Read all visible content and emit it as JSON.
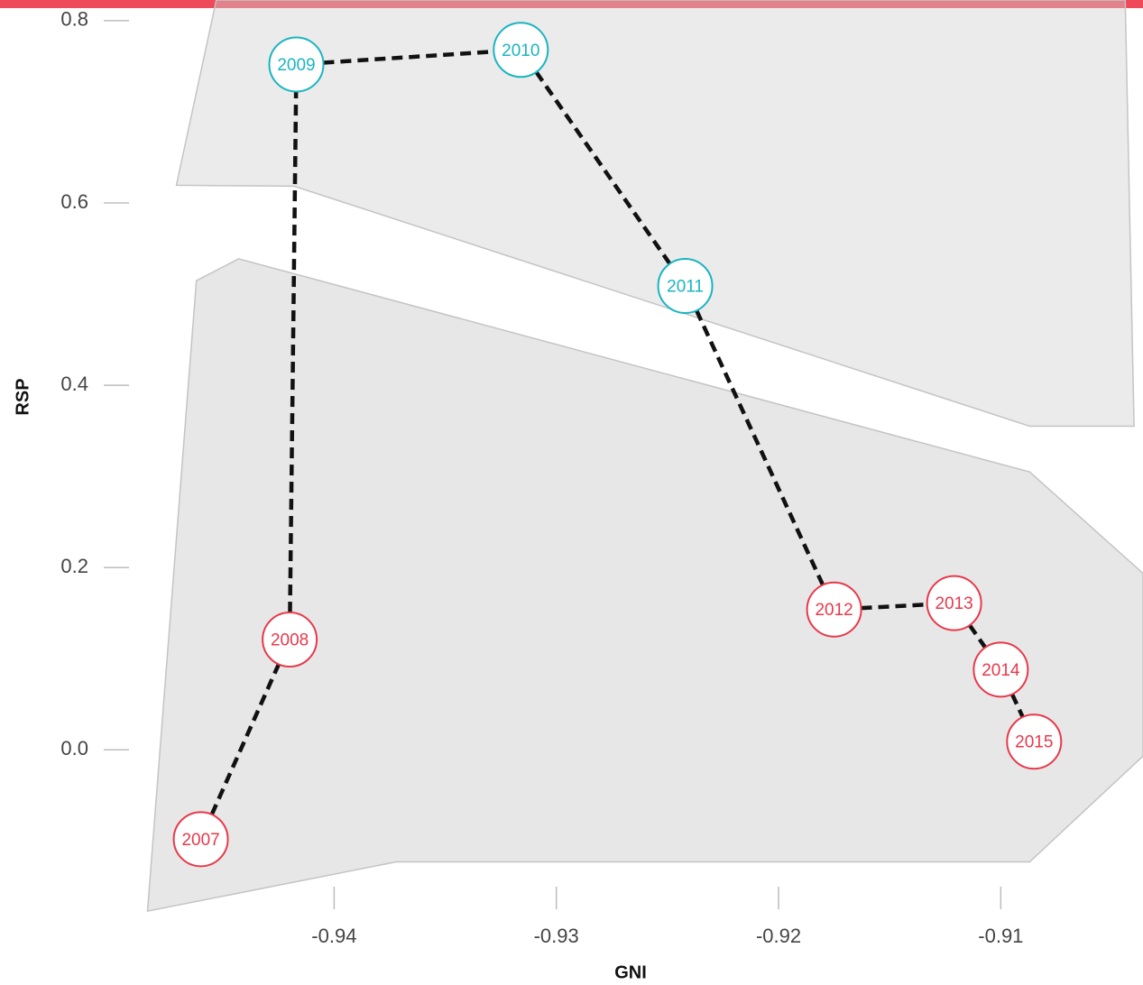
{
  "colors": {
    "top_bar": "#ef4a5a",
    "group_a": "#19b5c0",
    "group_b": "#e8394b",
    "region_fill": "#cfcfcf",
    "region_stroke": "#c4c4c4",
    "line": "#111111"
  },
  "chart_data": {
    "type": "scatter",
    "title": "",
    "xlabel": "GNI",
    "ylabel": "RSP",
    "xlim": [
      -0.9485,
      -0.9036
    ],
    "ylim": [
      -0.1818,
      0.8227
    ],
    "x_ticks": [
      -0.94,
      -0.93,
      -0.92,
      -0.91
    ],
    "x_tick_labels": [
      "-0.94",
      "-0.93",
      "-0.92",
      "-0.91"
    ],
    "y_ticks": [
      0.0,
      0.2,
      0.4,
      0.6,
      0.8
    ],
    "y_tick_labels": [
      "0.0",
      "0.2",
      "0.4",
      "0.6",
      "0.8"
    ],
    "grid": false,
    "connected": true,
    "line_style": "dashed",
    "points": [
      {
        "label": "2007",
        "x": -0.946,
        "y": -0.098,
        "group": "b"
      },
      {
        "label": "2008",
        "x": -0.942,
        "y": 0.121,
        "group": "b"
      },
      {
        "label": "2009",
        "x": -0.9417,
        "y": 0.752,
        "group": "a"
      },
      {
        "label": "2010",
        "x": -0.9316,
        "y": 0.768,
        "group": "a"
      },
      {
        "label": "2011",
        "x": -0.9242,
        "y": 0.509,
        "group": "a"
      },
      {
        "label": "2012",
        "x": -0.9175,
        "y": 0.154,
        "group": "b"
      },
      {
        "label": "2013",
        "x": -0.9121,
        "y": 0.161,
        "group": "b"
      },
      {
        "label": "2014",
        "x": -0.91,
        "y": 0.088,
        "group": "b"
      },
      {
        "label": "2015",
        "x": -0.9085,
        "y": 0.009,
        "group": "b"
      }
    ],
    "regions": [
      {
        "group": "a",
        "outline": [
          [
            -0.9471,
            0.6194
          ],
          [
            -0.9453,
            0.8227
          ],
          [
            -0.9044,
            0.8227
          ],
          [
            -0.904,
            0.3551
          ],
          [
            -0.9087,
            0.3551
          ],
          [
            -0.9418,
            0.6184
          ]
        ]
      },
      {
        "group": "b",
        "outline": [
          [
            -0.9462,
            0.5147
          ],
          [
            -0.9443,
            0.5388
          ],
          [
            -0.9087,
            0.3049
          ],
          [
            -0.9036,
            0.1937
          ],
          [
            -0.9036,
            -0.0068
          ],
          [
            -0.9087,
            -0.1229
          ],
          [
            -0.9372,
            -0.1229
          ],
          [
            -0.9484,
            -0.177
          ]
        ]
      }
    ]
  }
}
